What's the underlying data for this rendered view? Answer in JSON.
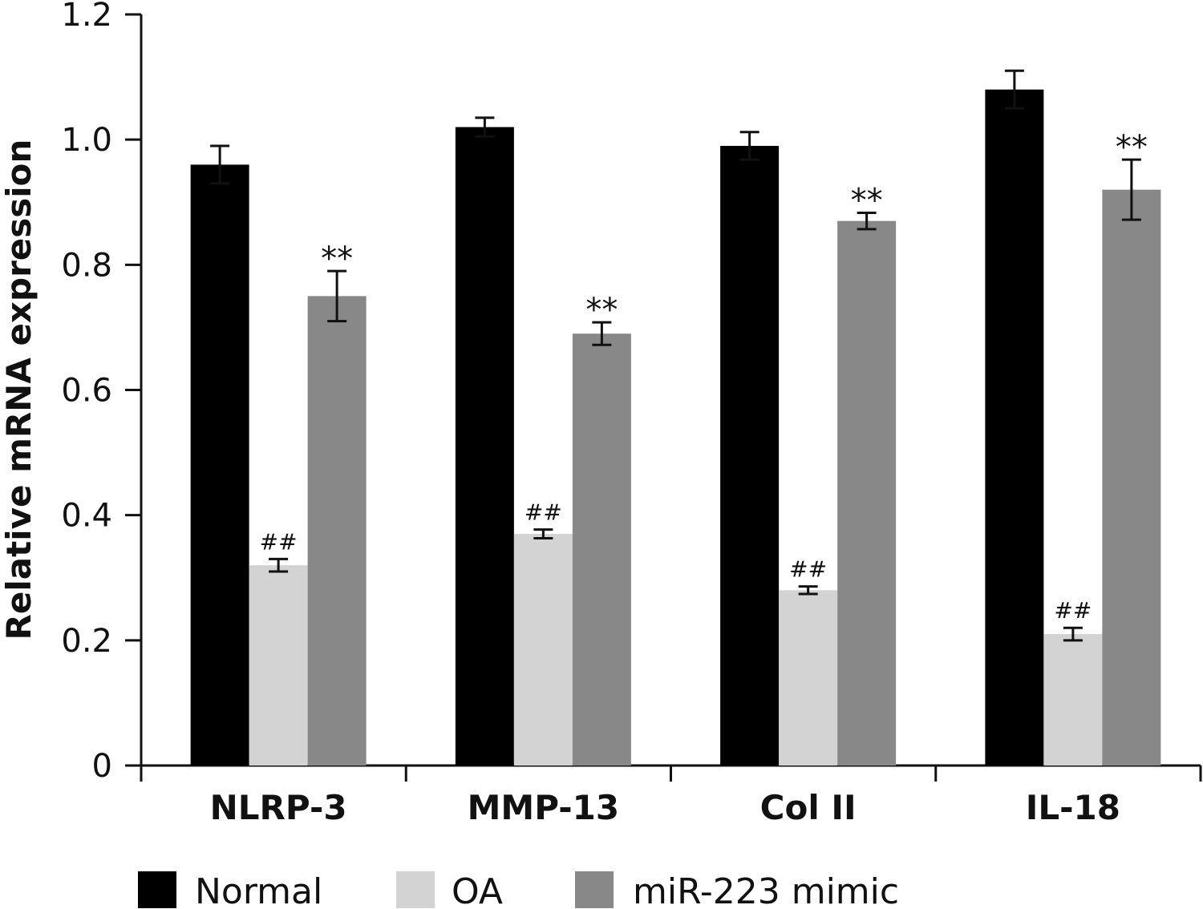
{
  "chart_data": {
    "type": "bar",
    "title": "",
    "xlabel": "",
    "ylabel": "Relative mRNA expression",
    "ylim": [
      0,
      1.2
    ],
    "yticks": [
      "0",
      "0.2",
      "0.4",
      "0.6",
      "0.8",
      "1.0",
      "1.2"
    ],
    "yticks_values": [
      0,
      0.2,
      0.4,
      0.6,
      0.8,
      1.0,
      1.2
    ],
    "grid": false,
    "legend_position": "bottom",
    "categories": [
      "NLRP-3",
      "MMP-13",
      "Col II",
      "IL-18"
    ],
    "series": [
      {
        "name": "Normal",
        "color": "#000000",
        "values": [
          0.96,
          1.02,
          0.99,
          1.08
        ],
        "errors": [
          0.03,
          0.015,
          0.022,
          0.03
        ],
        "annotations": [
          "",
          "",
          "",
          ""
        ]
      },
      {
        "name": "OA",
        "color": "#d3d3d3",
        "values": [
          0.32,
          0.37,
          0.28,
          0.21
        ],
        "errors": [
          0.01,
          0.007,
          0.006,
          0.01
        ],
        "annotations": [
          "##",
          "##",
          "##",
          "##"
        ]
      },
      {
        "name": "miR-223 mimic",
        "color": "#888888",
        "values": [
          0.75,
          0.69,
          0.87,
          0.92
        ],
        "errors": [
          0.04,
          0.018,
          0.013,
          0.048
        ],
        "annotations": [
          "**",
          "**",
          "**",
          "**"
        ]
      }
    ]
  }
}
